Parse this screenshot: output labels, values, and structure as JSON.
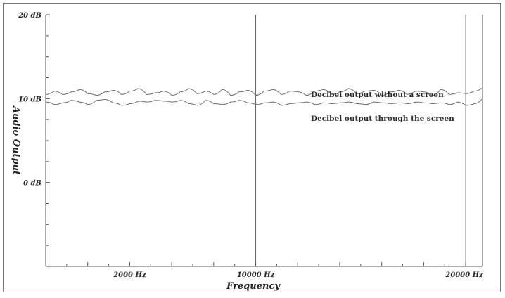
{
  "chart_data": {
    "type": "line",
    "title": "",
    "xlabel": "Frequency",
    "ylabel": "Audio Output",
    "xlim": [
      0,
      25000
    ],
    "ylim": [
      -10,
      20
    ],
    "y_ticks": [
      {
        "value": 20,
        "label": "20 dB"
      },
      {
        "value": 10,
        "label": "10 dB"
      },
      {
        "value": 0,
        "label": "0 dB"
      }
    ],
    "x_ticks": [
      {
        "value": 5000,
        "label": "2000 Hz"
      },
      {
        "value": 12500,
        "label": "10000 Hz"
      },
      {
        "value": 25000,
        "label": "20000 Hz"
      }
    ],
    "vertical_lines": [
      12500,
      25000
    ],
    "grid": false,
    "series": [
      {
        "name": "Decibel output without a screen",
        "color": "#6e6e6e",
        "x": [
          0,
          500,
          1000,
          1500,
          2000,
          2500,
          3000,
          3500,
          4000,
          4500,
          5000,
          5500,
          6000,
          6500,
          7000,
          7500,
          8000,
          8500,
          9000,
          9500,
          10000,
          10500,
          11000,
          11500,
          12000,
          12500,
          13000,
          13500,
          14000,
          14500,
          15000,
          15500,
          16000,
          16500,
          17000,
          17500,
          18000,
          18500,
          19000,
          19500,
          20000,
          20500,
          21000,
          21500,
          22000,
          22500,
          23000,
          23500,
          24000,
          24500,
          25000,
          25500,
          26000
        ],
        "values": [
          10.5,
          10.9,
          10.5,
          10.8,
          11.1,
          10.6,
          10.4,
          10.8,
          11.0,
          10.5,
          10.9,
          11.2,
          10.5,
          10.7,
          10.9,
          10.4,
          10.8,
          11.2,
          10.6,
          10.9,
          10.5,
          11.1,
          10.4,
          10.8,
          11.0,
          10.4,
          10.9,
          11.1,
          10.5,
          10.9,
          10.8,
          10.4,
          10.9,
          11.1,
          10.5,
          10.8,
          11.2,
          10.6,
          10.9,
          11.0,
          10.4,
          10.8,
          11.0,
          10.5,
          10.9,
          10.8,
          10.4,
          11.1,
          10.5,
          10.7,
          10.6,
          10.9,
          11.3
        ]
      },
      {
        "name": "Decibel output through the screen",
        "color": "#6e6e6e",
        "x": [
          0,
          500,
          1000,
          1500,
          2000,
          2500,
          3000,
          3500,
          4000,
          4500,
          5000,
          5500,
          6000,
          6500,
          7000,
          7500,
          8000,
          8500,
          9000,
          9500,
          10000,
          10500,
          11000,
          11500,
          12000,
          12500,
          13000,
          13500,
          14000,
          14500,
          15000,
          15500,
          16000,
          16500,
          17000,
          17500,
          18000,
          18500,
          19000,
          19500,
          20000,
          20500,
          21000,
          21500,
          22000,
          22500,
          23000,
          23500,
          24000,
          24500,
          25000,
          25500,
          26000
        ],
        "values": [
          9.6,
          9.3,
          9.5,
          9.8,
          9.6,
          9.3,
          9.8,
          9.9,
          9.5,
          9.2,
          9.4,
          9.7,
          9.6,
          9.8,
          9.7,
          9.6,
          9.8,
          9.4,
          9.2,
          9.8,
          9.4,
          9.3,
          9.6,
          9.8,
          9.5,
          9.3,
          9.5,
          9.6,
          9.2,
          9.4,
          9.5,
          9.6,
          9.3,
          9.5,
          9.4,
          9.5,
          9.6,
          9.4,
          9.3,
          9.6,
          9.5,
          9.4,
          9.5,
          9.4,
          9.6,
          9.5,
          9.4,
          9.5,
          9.3,
          9.6,
          9.2,
          9.4,
          10.0
        ]
      }
    ],
    "annotations": [
      {
        "text": "Decibel output without a screen",
        "series": 0
      },
      {
        "text": "Decibel output through the screen",
        "series": 1
      }
    ]
  }
}
